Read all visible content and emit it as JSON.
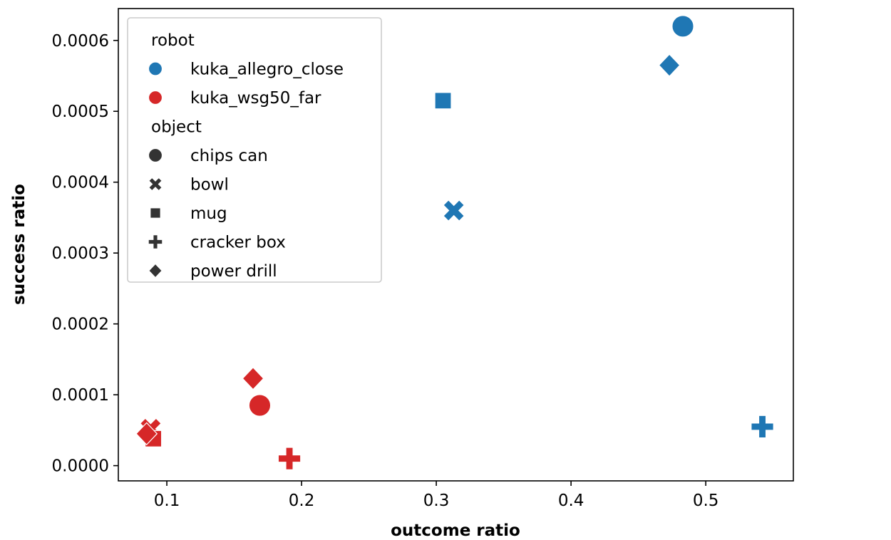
{
  "chart_data": {
    "type": "scatter",
    "xlabel": "outcome ratio",
    "ylabel": "success ratio",
    "xlim": [
      0.064,
      0.565
    ],
    "ylim": [
      -2.15e-05,
      0.000645
    ],
    "xticks": [
      0.1,
      0.2,
      0.3,
      0.4,
      0.5
    ],
    "xtick_labels": [
      "0.1",
      "0.2",
      "0.3",
      "0.4",
      "0.5"
    ],
    "yticks": [
      0.0,
      0.0001,
      0.0002,
      0.0003,
      0.0004,
      0.0005,
      0.0006
    ],
    "ytick_labels": [
      "0.0000",
      "0.0001",
      "0.0002",
      "0.0003",
      "0.0004",
      "0.0005",
      "0.0006"
    ],
    "grid": false,
    "legend_position": "top-left",
    "legend": {
      "hue_title": "robot",
      "hue_entries": [
        {
          "label": "kuka_allegro_close",
          "color": "#1f77b4"
        },
        {
          "label": "kuka_wsg50_far",
          "color": "#d62728"
        }
      ],
      "style_title": "object",
      "style_entries": [
        {
          "label": "chips can",
          "marker": "circle"
        },
        {
          "label": "bowl",
          "marker": "x"
        },
        {
          "label": "mug",
          "marker": "square"
        },
        {
          "label": "cracker box",
          "marker": "plus"
        },
        {
          "label": "power drill",
          "marker": "diamond"
        }
      ],
      "marker_color": "#333333"
    },
    "series": [
      {
        "robot": "kuka_allegro_close",
        "object": "chips can",
        "x": 0.483,
        "y": 0.00062
      },
      {
        "robot": "kuka_allegro_close",
        "object": "bowl",
        "x": 0.313,
        "y": 0.00036
      },
      {
        "robot": "kuka_allegro_close",
        "object": "mug",
        "x": 0.305,
        "y": 0.000515
      },
      {
        "robot": "kuka_allegro_close",
        "object": "cracker box",
        "x": 0.542,
        "y": 5.5e-05
      },
      {
        "robot": "kuka_allegro_close",
        "object": "power drill",
        "x": 0.473,
        "y": 0.000565
      },
      {
        "robot": "kuka_wsg50_far",
        "object": "chips can",
        "x": 0.169,
        "y": 8.5e-05
      },
      {
        "robot": "kuka_wsg50_far",
        "object": "bowl",
        "x": 0.088,
        "y": 5.2e-05
      },
      {
        "robot": "kuka_wsg50_far",
        "object": "mug",
        "x": 0.09,
        "y": 3.8e-05
      },
      {
        "robot": "kuka_wsg50_far",
        "object": "cracker box",
        "x": 0.191,
        "y": 1e-05
      },
      {
        "robot": "kuka_wsg50_far",
        "object": "power drill",
        "x": 0.164,
        "y": 0.000123
      },
      {
        "robot": "kuka_wsg50_far",
        "object": "power drill",
        "x": 0.085,
        "y": 4.5e-05
      }
    ]
  }
}
